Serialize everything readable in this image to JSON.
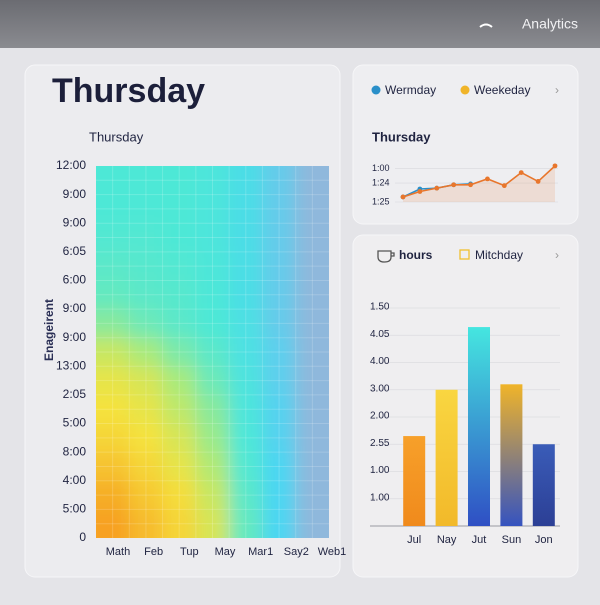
{
  "header": {
    "title": "Analytics"
  },
  "chart_data": [
    {
      "type": "heatmap",
      "title": "Thursday",
      "subtitle": "Thursday",
      "ylabel": "Enageirent",
      "categories": [
        "Math",
        "Feb",
        "Tup",
        "May",
        "Mar1",
        "Say2",
        "Web1"
      ],
      "ytick_labels": [
        "12:00",
        "9:00",
        "9:00",
        "6:05",
        "6:00",
        "9:00",
        "9:00",
        "13:00",
        "2:05",
        "5:00",
        "8:00",
        "4:00",
        "5:00",
        "0"
      ],
      "values": [
        [
          75,
          75,
          75,
          78,
          85,
          95,
          100
        ],
        [
          75,
          75,
          75,
          78,
          85,
          95,
          100
        ],
        [
          74,
          74,
          75,
          78,
          85,
          95,
          100
        ],
        [
          72,
          73,
          74,
          77,
          84,
          95,
          100
        ],
        [
          70,
          72,
          73,
          76,
          84,
          95,
          100
        ],
        [
          62,
          68,
          72,
          75,
          83,
          95,
          100
        ],
        [
          45,
          55,
          65,
          72,
          82,
          94,
          100
        ],
        [
          35,
          40,
          55,
          68,
          80,
          94,
          100
        ],
        [
          30,
          35,
          48,
          62,
          78,
          93,
          100
        ],
        [
          25,
          30,
          40,
          58,
          76,
          93,
          100
        ],
        [
          18,
          25,
          35,
          52,
          74,
          92,
          100
        ],
        [
          10,
          20,
          28,
          45,
          72,
          92,
          100
        ],
        [
          5,
          15,
          25,
          40,
          70,
          92,
          100
        ]
      ],
      "colorscale": [
        {
          "value": 0,
          "color": "#f7941d"
        },
        {
          "value": 30,
          "color": "#f5e23c"
        },
        {
          "value": 55,
          "color": "#a8ea7c"
        },
        {
          "value": 75,
          "color": "#4de8d6"
        },
        {
          "value": 92,
          "color": "#4cd6f2"
        },
        {
          "value": 100,
          "color": "#8fb8dc"
        }
      ]
    },
    {
      "type": "line",
      "title": "Thursday",
      "ylim": [
        0,
        10
      ],
      "yticks": [
        {
          "value": 8,
          "label": "1:00"
        },
        {
          "value": 4.5,
          "label": "1:24"
        },
        {
          "value": 0,
          "label": "1:25"
        }
      ],
      "series": [
        {
          "name": "Wermday",
          "color": "#2a8fc9",
          "line_color": "#2a8fc9",
          "values": [
            1.2,
            3.1,
            3.3,
            4.1,
            4.3,
            null,
            null,
            null,
            null,
            null
          ]
        },
        {
          "name": "Weekeday",
          "color": "#f0b429",
          "line_color": "#e8762c",
          "values": [
            1.2,
            2.5,
            3.3,
            4.1,
            4.1,
            5.5,
            3.9,
            7.0,
            4.9,
            8.6
          ]
        }
      ]
    },
    {
      "type": "bar",
      "ylim": [
        0,
        8
      ],
      "yticks": [
        {
          "value": 8,
          "label": "1.50"
        },
        {
          "value": 7,
          "label": "4.05"
        },
        {
          "value": 6,
          "label": "4.00"
        },
        {
          "value": 5,
          "label": "3.00"
        },
        {
          "value": 4,
          "label": "2.00"
        },
        {
          "value": 3,
          "label": "2.55"
        },
        {
          "value": 2,
          "label": "1.00"
        },
        {
          "value": 1,
          "label": "1.00"
        }
      ],
      "legend": [
        {
          "name": "hours",
          "color": "#555555"
        },
        {
          "name": "Mitchday",
          "color": "#f0c030"
        }
      ],
      "categories": [
        "Jul",
        "Nay",
        "Jut",
        "Sun",
        "Jon"
      ],
      "values": [
        3.3,
        5.0,
        7.3,
        5.2,
        3.0
      ],
      "colors": [
        [
          "#f7a02a",
          "#f08a1c"
        ],
        [
          "#f9d641",
          "#f2b92a"
        ],
        [
          "#45e6e0",
          "#2f4fc4"
        ],
        [
          "#f0b429",
          "#3553c0"
        ],
        [
          "#3a5cb8",
          "#2c3f95"
        ]
      ]
    }
  ]
}
